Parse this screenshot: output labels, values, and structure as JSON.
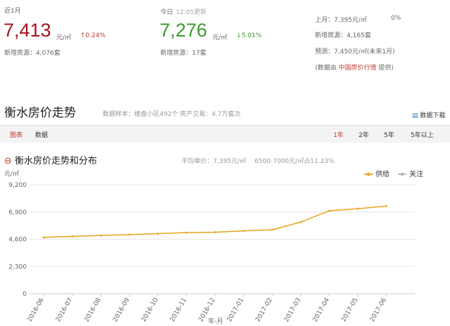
{
  "summary": {
    "month": {
      "label": "近1月",
      "price": "7,413",
      "unit": "元/㎡",
      "change": "↑0.24%",
      "new_listings": "新增房源：4,076套"
    },
    "today": {
      "label": "今日",
      "updated": "12:05更新",
      "price": "7,276",
      "unit": "元/㎡",
      "change": "↓5.01%",
      "new_listings": "新增房源：17套"
    },
    "side": {
      "last_month": "上月：7,395元/㎡",
      "last_month_change": "0%",
      "new_listings": "新增房源：4,165套",
      "forecast": "预测：7,450元/㎡(未来1月)",
      "source_pre": "(数据由",
      "source_link": "中国房价行情",
      "source_post": "提供)"
    }
  },
  "section": {
    "title": "衡水房价走势",
    "sample": "数据样本：楼盘小区492个",
    "trades": "房产交易：4.7万套次",
    "download": "数据下载"
  },
  "tabs": {
    "left": [
      "图表",
      "数据"
    ],
    "ranges": [
      "1年",
      "2年",
      "5年",
      "5年以上"
    ]
  },
  "chart_header": {
    "title": "衡水房价走势和分布",
    "average": "平均单价：7,395元/㎡",
    "share": "6500-7000元/㎡占11.23%"
  },
  "chart_data": {
    "type": "line",
    "y_label": "元/㎡",
    "x_label": "年-月",
    "categories": [
      "2016-06",
      "2016-07",
      "2016-08",
      "2016-09",
      "2016-10",
      "2016-11",
      "2016-12",
      "2017-01",
      "2017-02",
      "2017-03",
      "2017-04",
      "2017-05",
      "2017-06"
    ],
    "series": [
      {
        "name": "供给",
        "color": "#e9a92a",
        "values": [
          4750,
          4840,
          4920,
          4990,
          5070,
          5160,
          5190,
          5310,
          5400,
          6050,
          7000,
          7180,
          7400
        ]
      },
      {
        "name": "关注",
        "color": "#bbbbbb",
        "values": [
          null,
          null,
          null,
          null,
          null,
          null,
          null,
          null,
          null,
          null,
          null,
          null,
          null
        ]
      }
    ],
    "ylim": [
      0,
      9200
    ],
    "yticks": [
      0,
      {
        "value": 2300,
        "label": "2,300"
      },
      {
        "value": 4600,
        "label": "4,600"
      },
      {
        "value": 6900,
        "label": "6,900"
      },
      {
        "value": 9200,
        "label": "9,200"
      }
    ],
    "grid": true,
    "legend": "top-right"
  }
}
